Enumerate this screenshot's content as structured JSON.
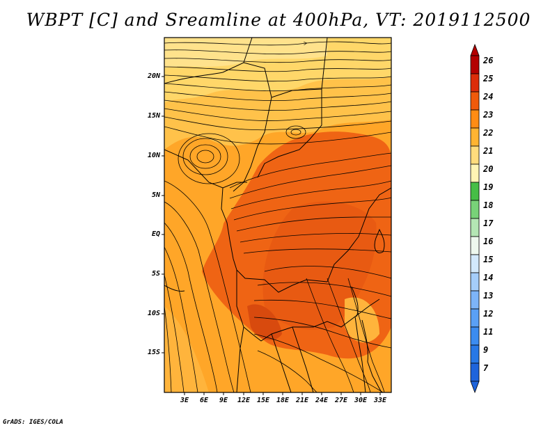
{
  "title": "WBPT [C] and Sreamline at 400hPa, VT: 2019112500",
  "credit": "GrADS: IGES/COLA",
  "y_axis_labels": [
    "20N",
    "15N",
    "10N",
    "5N",
    "EQ",
    "5S",
    "10S",
    "15S"
  ],
  "x_axis_labels": [
    "3E",
    "6E",
    "9E",
    "12E",
    "15E",
    "18E",
    "21E",
    "24E",
    "27E",
    "30E",
    "33E"
  ],
  "colorbar": {
    "labels": [
      "7",
      "9",
      "11",
      "12",
      "13",
      "14",
      "15",
      "16",
      "17",
      "18",
      "19",
      "20",
      "21",
      "22",
      "23",
      "24",
      "25",
      "26"
    ],
    "colors": [
      "#1e64dc",
      "#2878e6",
      "#3c8cf0",
      "#5aa0f5",
      "#7db4f8",
      "#a5cdfa",
      "#d2e8fb",
      "#eef8ee",
      "#b4e6b4",
      "#78d278",
      "#46be46",
      "#fff5b4",
      "#ffdc7d",
      "#ffb432",
      "#ff8c14",
      "#f05a0a",
      "#dc2d0a",
      "#b40000"
    ]
  },
  "colors": {
    "field_low": "#ffd769",
    "field_mid": "#ffa628",
    "field_high": "#ef6414",
    "field_max": "#e24a0f",
    "streamline": "#000000"
  }
}
